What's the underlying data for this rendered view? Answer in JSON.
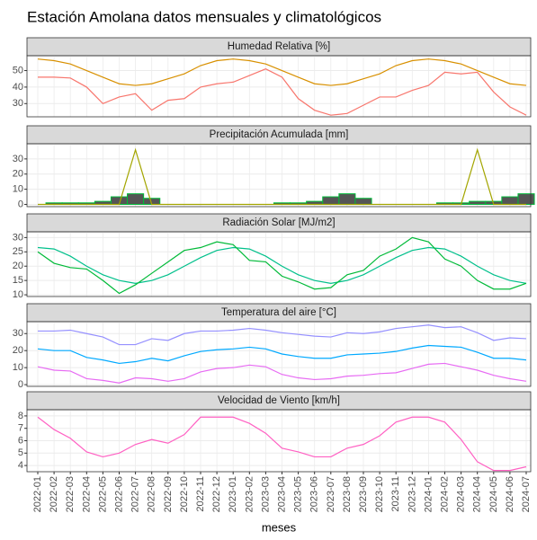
{
  "title": "Estación Amolana datos mensuales y climatológicos",
  "chart_data": [
    {
      "type": "line",
      "title": "Humedad Relativa [%]",
      "ylim": [
        22,
        59
      ],
      "yticks": [
        30,
        40,
        50
      ],
      "grid": true,
      "series": [
        {
          "color": "#F8766D",
          "values": [
            46,
            46,
            45.5,
            40,
            30,
            34,
            36,
            26,
            32,
            33,
            40,
            42,
            43,
            47,
            51,
            46,
            33,
            26,
            23,
            24,
            29,
            34,
            34,
            38,
            41,
            49,
            48,
            49,
            37,
            28,
            23
          ]
        },
        {
          "color": "#D89000",
          "values": [
            57,
            56,
            54,
            50,
            46,
            42,
            41,
            42,
            45,
            48,
            53,
            56,
            57,
            56,
            54,
            50,
            46,
            42,
            41,
            42,
            45,
            48,
            53,
            56,
            57,
            56,
            54,
            50,
            46,
            42,
            41
          ]
        }
      ]
    },
    {
      "type": "bar",
      "title": "Precipitación Acumulada [mm]",
      "ylim": [
        -1.5,
        40
      ],
      "yticks": [
        0,
        10,
        20,
        30
      ],
      "grid": true,
      "series": [
        {
          "type": "bar",
          "color": "#00BA38",
          "fill": "#555555",
          "values": [
            0,
            1,
            1,
            1,
            2,
            5,
            7,
            4,
            0,
            0,
            0,
            0,
            0,
            0,
            0,
            1,
            1,
            2,
            5,
            7,
            4,
            0,
            0,
            0,
            0,
            1,
            1,
            2,
            2,
            5,
            7
          ]
        },
        {
          "type": "line",
          "color": "#A3A500",
          "values": [
            0,
            0,
            0,
            0,
            0,
            0,
            36,
            0,
            0,
            0,
            0,
            0,
            0,
            0,
            0,
            0,
            0,
            0,
            0,
            0,
            0,
            0,
            0,
            0,
            0,
            0,
            0,
            36,
            0,
            0,
            0
          ]
        }
      ]
    },
    {
      "type": "line",
      "title": "Radiación Solar [MJ/m2]",
      "ylim": [
        9.4,
        32
      ],
      "yticks": [
        10,
        15,
        20,
        25,
        30
      ],
      "grid": true,
      "series": [
        {
          "color": "#00C08B",
          "values": [
            26.5,
            26,
            23.5,
            20,
            17,
            15,
            14,
            15,
            17,
            20,
            23,
            25.5,
            26.5,
            26,
            23.5,
            20,
            17,
            15,
            14,
            15,
            17,
            20,
            23,
            25.5,
            26.5,
            26,
            23.5,
            20,
            17,
            15,
            14
          ]
        },
        {
          "color": "#00BA38",
          "values": [
            25,
            21,
            19.5,
            19,
            15,
            10.5,
            13.5,
            17.5,
            21.5,
            25.5,
            26.5,
            28.5,
            27.5,
            22,
            21.5,
            16.5,
            14.5,
            12,
            12.5,
            17,
            18.5,
            23.5,
            26,
            30,
            28.5,
            22.5,
            20,
            15,
            12,
            12,
            14
          ]
        }
      ]
    },
    {
      "type": "line",
      "title": "Temperatura del aire [°C]",
      "ylim": [
        -1,
        37
      ],
      "yticks": [
        0,
        10,
        20,
        30
      ],
      "grid": true,
      "series": [
        {
          "color": "#9590FF",
          "values": [
            31.5,
            31.5,
            32,
            30,
            28,
            23.5,
            23.5,
            27,
            26,
            30,
            31.5,
            31.5,
            32,
            33,
            32,
            30.5,
            29.5,
            28.5,
            28,
            30.5,
            30,
            31,
            33,
            34,
            35,
            33.5,
            34,
            30.5,
            26,
            27.5,
            27
          ]
        },
        {
          "color": "#00A9FF",
          "values": [
            21,
            20,
            20,
            16,
            14.5,
            12.5,
            13.5,
            15.5,
            14,
            17,
            19.5,
            20.5,
            21,
            22,
            21,
            18,
            16.5,
            15.5,
            15.5,
            17.5,
            18,
            18.5,
            19.5,
            21.5,
            23,
            22.5,
            22,
            19,
            15.5,
            15.5,
            14.5
          ]
        },
        {
          "color": "#E76BF3",
          "values": [
            10.5,
            8.5,
            8,
            3.5,
            2.5,
            1,
            4,
            3.5,
            2,
            3.5,
            7.5,
            9.5,
            10,
            11.5,
            10.5,
            6,
            4,
            3,
            3.5,
            5,
            5.5,
            6.5,
            7,
            9.5,
            12,
            12.5,
            10.5,
            8.5,
            5.5,
            3.5,
            2
          ]
        }
      ]
    },
    {
      "type": "line",
      "title": "Velocidad de Viento [km/h]",
      "ylim": [
        3.5,
        8.5
      ],
      "yticks": [
        4,
        5,
        6,
        7,
        8
      ],
      "grid": true,
      "xlabel": "meses",
      "categories": [
        "2022-01",
        "2022-02",
        "2022-03",
        "2022-04",
        "2022-05",
        "2022-06",
        "2022-07",
        "2022-08",
        "2022-09",
        "2022-10",
        "2022-11",
        "2022-12",
        "2023-01",
        "2023-02",
        "2023-03",
        "2023-04",
        "2023-05",
        "2023-06",
        "2023-07",
        "2023-08",
        "2023-09",
        "2023-10",
        "2023-11",
        "2023-12",
        "2024-01",
        "2024-02",
        "2024-03",
        "2024-04",
        "2024-05",
        "2024-06",
        "2024-07"
      ],
      "series": [
        {
          "color": "#FF61C3",
          "values": [
            7.9,
            6.9,
            6.2,
            5.1,
            4.7,
            5.0,
            5.7,
            6.1,
            5.8,
            6.5,
            7.9,
            7.9,
            7.9,
            7.4,
            6.6,
            5.4,
            5.1,
            4.7,
            4.7,
            5.4,
            5.7,
            6.4,
            7.5,
            7.9,
            7.9,
            7.5,
            6.1,
            4.3,
            3.6,
            3.6,
            3.9
          ]
        }
      ]
    }
  ]
}
